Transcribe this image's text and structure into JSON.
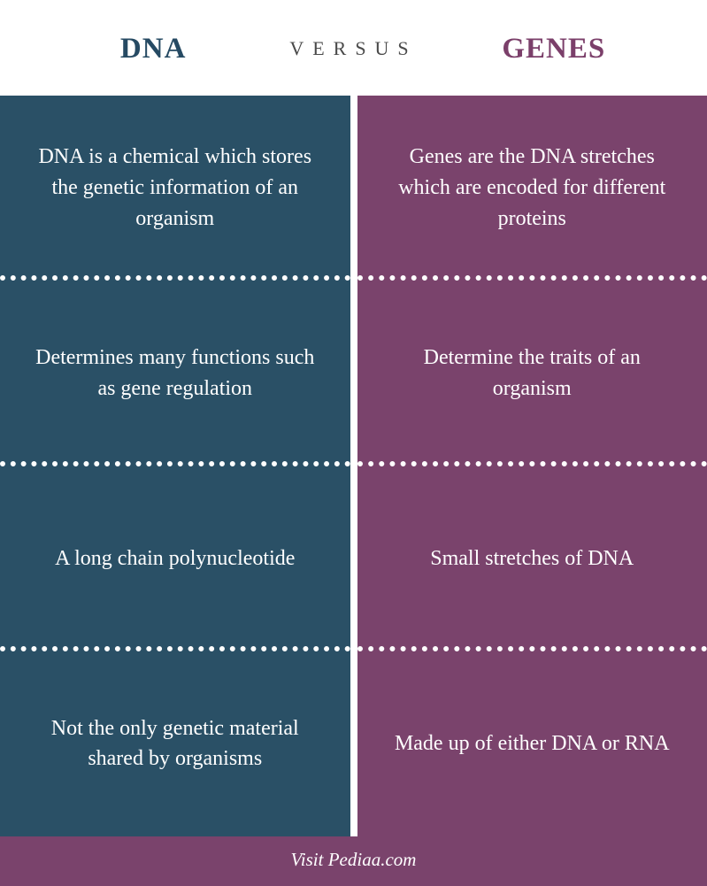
{
  "header": {
    "left_label": "DNA",
    "middle_label": "VERSUS",
    "right_label": "GENES",
    "left_color": "#264a63",
    "middle_color": "#4a4a4a",
    "right_color": "#7b3f6a"
  },
  "columns": {
    "left": {
      "background_color": "#2a5066",
      "cells": [
        "DNA is a chemical which stores the genetic information of an organism",
        "Determines many functions such as gene regulation",
        "A long chain polynucleotide",
        "Not the only genetic material shared by organisms"
      ]
    },
    "right": {
      "background_color": "#7a436c",
      "cells": [
        "Genes are the DNA stretches which are encoded for different proteins",
        "Determine the traits of an organism",
        "Small stretches of DNA",
        "Made up of either DNA or RNA"
      ]
    }
  },
  "footer": {
    "text": "Visit Pediaa.com",
    "background_color": "#7a436c"
  },
  "style": {
    "divider_dot_color": "#ffffff",
    "text_color": "#ffffff",
    "cell_fontsize": 24,
    "header_fontsize": 33,
    "versus_fontsize": 22,
    "footer_fontsize": 21
  }
}
